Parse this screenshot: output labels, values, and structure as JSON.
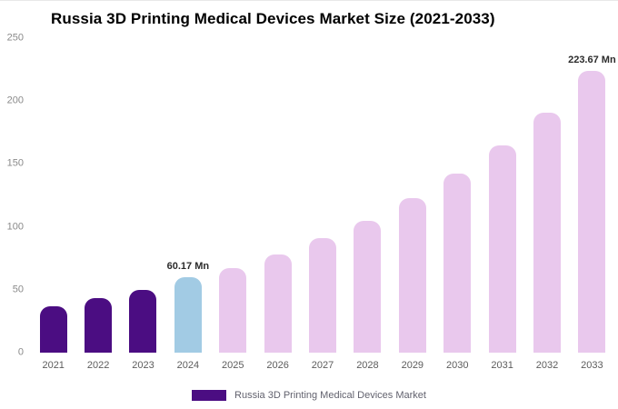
{
  "title": "Russia 3D Printing Medical Devices Market Size (2021-2033)",
  "legend": {
    "label": "Russia 3D Printing Medical Devices Market",
    "swatch_color": "#4b0d82"
  },
  "chart_data": {
    "type": "bar",
    "title": "Russia 3D Printing Medical Devices Market Size (2021-2033)",
    "categories": [
      "2021",
      "2022",
      "2023",
      "2024",
      "2025",
      "2026",
      "2027",
      "2028",
      "2029",
      "2030",
      "2031",
      "2032",
      "2033"
    ],
    "values": [
      37,
      43.5,
      50,
      60.17,
      67.5,
      78,
      91,
      105,
      122.5,
      142.5,
      164.5,
      191,
      223.67
    ],
    "unit": "Mn",
    "bar_colors": [
      "#4b0d82",
      "#4b0d82",
      "#4b0d82",
      "#a2cbe4",
      "#e9c8ed",
      "#e9c8ed",
      "#e9c8ed",
      "#e9c8ed",
      "#e9c8ed",
      "#e9c8ed",
      "#e9c8ed",
      "#e9c8ed",
      "#e9c8ed"
    ],
    "annotations": [
      {
        "category": "2024",
        "text": "60.17 Mn"
      },
      {
        "category": "2033",
        "text": "223.67 Mn"
      }
    ],
    "xlabel": "",
    "ylabel": "",
    "ylim": [
      0,
      250
    ],
    "yticks": [
      0,
      50,
      100,
      150,
      200,
      250
    ],
    "grid": false,
    "legend_position": "bottom"
  }
}
